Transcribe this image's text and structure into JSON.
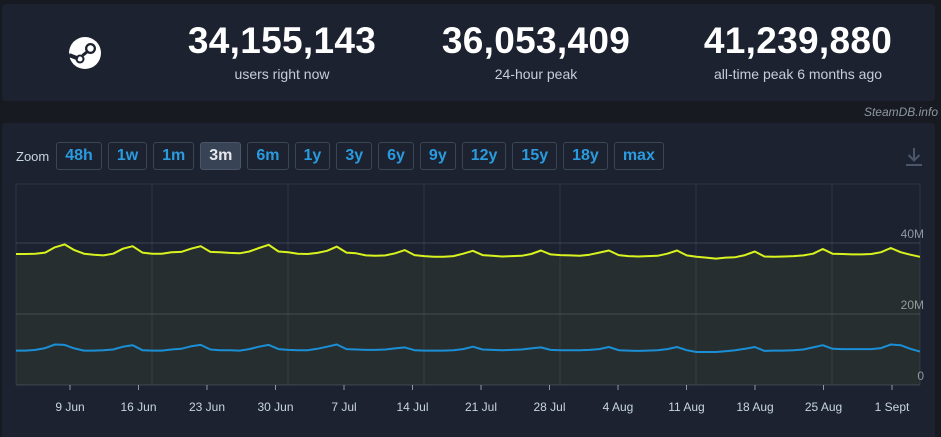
{
  "stats": [
    {
      "value": "34,155,143",
      "label": "users right now"
    },
    {
      "value": "36,053,409",
      "label": "24-hour peak"
    },
    {
      "value": "41,239,880",
      "label": "all-time peak 6 months ago"
    }
  ],
  "watermark": "SteamDB.info",
  "zoom": {
    "label": "Zoom",
    "options": [
      "48h",
      "1w",
      "1m",
      "3m",
      "6m",
      "1y",
      "3y",
      "6y",
      "9y",
      "12y",
      "15y",
      "18y",
      "max"
    ],
    "selected": "3m"
  },
  "colors": {
    "background": "#171a21",
    "panel": "#1c2230",
    "users_line": "#d9f31e",
    "in_game_line": "#1a8fd6",
    "accent": "#2a9bde"
  },
  "icons": [
    "steam-logo",
    "download-icon"
  ],
  "chart_data": {
    "type": "line",
    "x_ticks": [
      "9 Jun",
      "16 Jun",
      "23 Jun",
      "30 Jun",
      "7 Jul",
      "14 Jul",
      "21 Jul",
      "28 Jul",
      "4 Aug",
      "11 Aug",
      "18 Aug",
      "25 Aug",
      "1 Sept"
    ],
    "y_ticks": [
      "0",
      "20M",
      "40M"
    ],
    "ylim": [
      0,
      45000000
    ],
    "grid": true,
    "series": [
      {
        "color": "#d9f31e",
        "area": true,
        "values": [
          36.9,
          36.9,
          37.0,
          37.3,
          38.8,
          39.6,
          38.0,
          37.0,
          36.7,
          36.5,
          37.0,
          38.4,
          39.1,
          37.3,
          37.0,
          37.0,
          37.4,
          37.5,
          38.4,
          39.1,
          37.5,
          37.4,
          37.2,
          37.1,
          37.6,
          38.6,
          39.5,
          37.6,
          37.4,
          37.0,
          36.9,
          37.2,
          37.8,
          39.0,
          37.3,
          37.1,
          36.5,
          36.4,
          36.5,
          37.1,
          38.0,
          36.6,
          36.3,
          36.1,
          36.1,
          36.3,
          37.0,
          37.8,
          36.6,
          36.4,
          36.2,
          36.3,
          36.4,
          36.9,
          37.9,
          36.8,
          36.6,
          36.5,
          36.4,
          36.7,
          37.3,
          37.9,
          36.6,
          36.3,
          36.2,
          36.3,
          36.4,
          37.0,
          37.9,
          36.5,
          36.1,
          35.9,
          35.6,
          35.9,
          36.0,
          36.6,
          37.6,
          36.2,
          36.1,
          36.2,
          36.3,
          36.5,
          37.0,
          38.3,
          37.0,
          36.9,
          36.8,
          36.8,
          36.9,
          37.4,
          38.6,
          37.4,
          36.7,
          36.1
        ]
      },
      {
        "color": "#1a8fd6",
        "area": false,
        "values": [
          9.7,
          9.7,
          9.9,
          10.4,
          11.4,
          11.3,
          10.3,
          9.7,
          9.7,
          9.8,
          10.0,
          10.8,
          11.2,
          9.8,
          9.7,
          9.7,
          10.0,
          10.2,
          10.9,
          11.3,
          10.0,
          9.8,
          9.8,
          9.7,
          10.1,
          10.8,
          11.3,
          10.1,
          9.9,
          9.8,
          9.8,
          10.2,
          10.8,
          11.4,
          10.1,
          10.0,
          9.9,
          9.9,
          10.0,
          10.3,
          10.6,
          9.8,
          9.7,
          9.7,
          9.7,
          9.8,
          10.1,
          10.8,
          10.0,
          9.9,
          9.8,
          9.9,
          10.0,
          10.3,
          10.6,
          9.9,
          9.8,
          9.8,
          9.8,
          9.9,
          10.1,
          10.7,
          9.8,
          9.7,
          9.6,
          9.7,
          9.8,
          10.1,
          10.7,
          9.8,
          9.3,
          9.3,
          9.3,
          9.5,
          9.8,
          10.2,
          10.7,
          9.6,
          9.7,
          9.7,
          9.8,
          10.0,
          10.6,
          11.2,
          10.2,
          10.1,
          10.1,
          10.1,
          10.1,
          10.4,
          11.4,
          11.2,
          10.2,
          9.4
        ]
      }
    ]
  }
}
